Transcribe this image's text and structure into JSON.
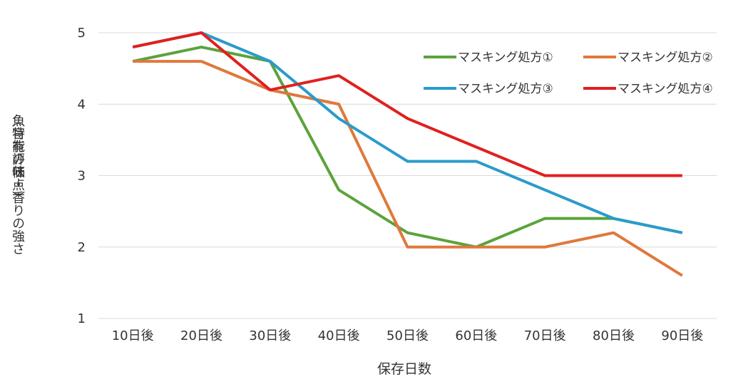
{
  "chart_data": {
    "type": "line",
    "title": "",
    "xlabel": "保存日数",
    "ylabel_lines": [
      "魚特有の味・香りの強さ",
      "（官能評価点）"
    ],
    "categories": [
      "10日後",
      "20日後",
      "30日後",
      "40日後",
      "50日後",
      "60日後",
      "70日後",
      "80日後",
      "90日後"
    ],
    "ylim": [
      1,
      5
    ],
    "yticks": [
      "1",
      "2",
      "3",
      "4",
      "5"
    ],
    "grid": true,
    "legend_position": "top-right",
    "series": [
      {
        "name": "マスキング処方①",
        "color": "#5BA33B",
        "values": [
          4.6,
          4.8,
          4.6,
          2.8,
          2.2,
          2.0,
          2.4,
          2.4,
          2.2
        ]
      },
      {
        "name": "マスキング処方②",
        "color": "#E0783C",
        "values": [
          4.6,
          4.6,
          4.2,
          4.0,
          2.0,
          2.0,
          2.0,
          2.2,
          1.6
        ]
      },
      {
        "name": "マスキング処方③",
        "color": "#2A9BCB",
        "values": [
          4.8,
          5.0,
          4.6,
          3.8,
          3.2,
          3.2,
          2.8,
          2.4,
          2.2
        ]
      },
      {
        "name": "マスキング処方④",
        "color": "#E0201E",
        "values": [
          4.8,
          5.0,
          4.2,
          4.4,
          3.8,
          3.4,
          3.0,
          3.0,
          3.0
        ]
      }
    ]
  }
}
